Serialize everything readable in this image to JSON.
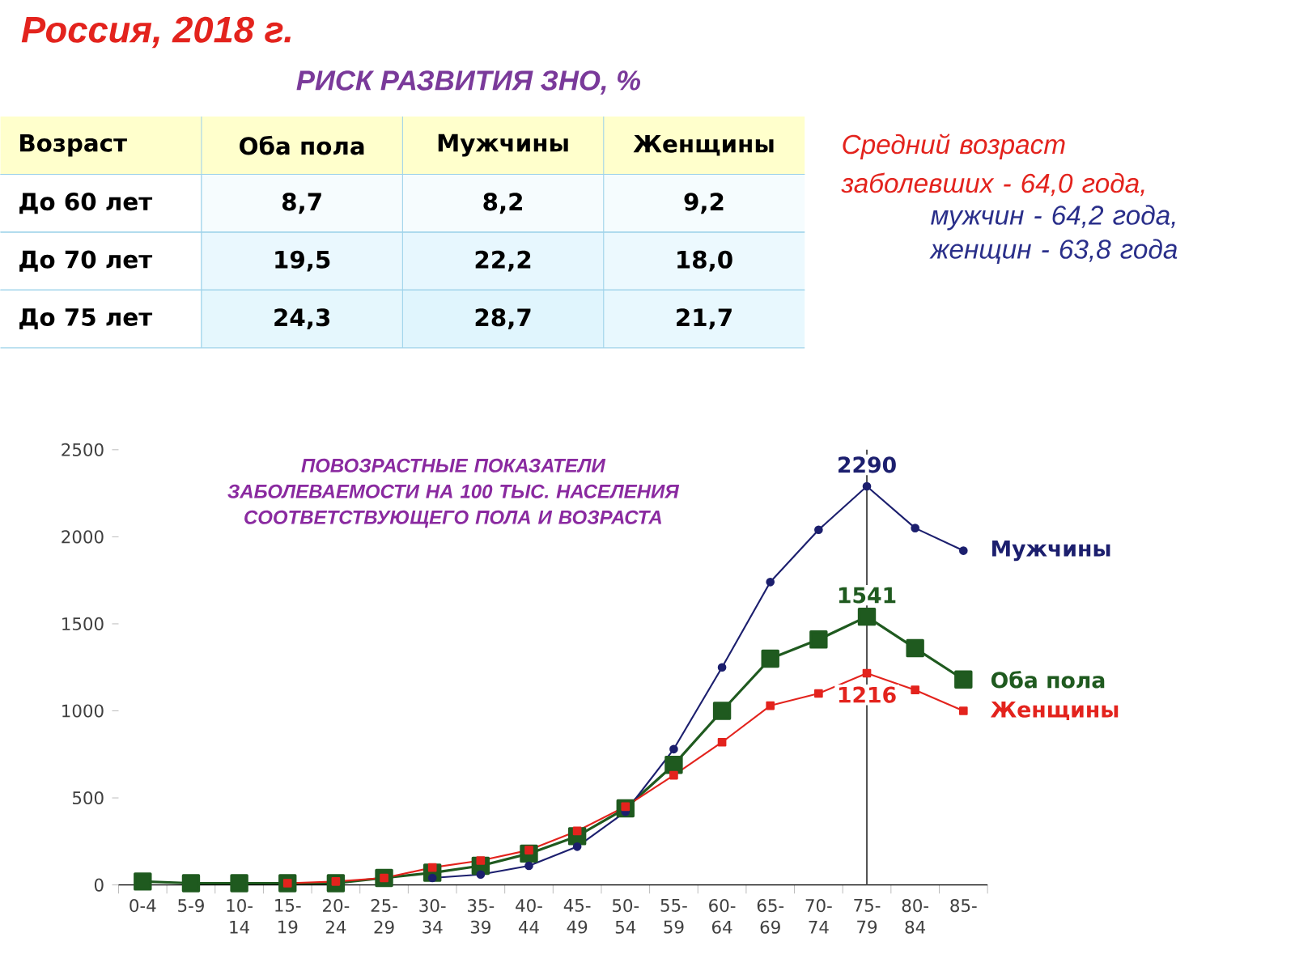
{
  "chart_data": [
    {
      "type": "heatmap",
      "title": "Россия, 2018 г.",
      "subtitle": "РИСК РАЗВИТИЯ ЗНО, %",
      "ylabel": "Возраст",
      "categories": [
        "Оба пола",
        "Мужчины",
        "Женщины"
      ],
      "y_categories": [
        "До 60 лет",
        "До 70 лет",
        "До 75 лет"
      ],
      "cells": [
        [
          8.7,
          8.2,
          9.2
        ],
        [
          19.5,
          22.2,
          18.0
        ],
        [
          24.3,
          28.7,
          21.7
        ]
      ],
      "cell_labels": [
        [
          "8,7",
          "8,2",
          "9,2"
        ],
        [
          "19,5",
          "22,2",
          "18,0"
        ],
        [
          "24,3",
          "28,7",
          "21,7"
        ]
      ],
      "annotations": [
        "Средний возраст заболевших - 64,0 года,",
        "мужчин - 64,2 года,",
        "женщин - 63,8 года"
      ]
    },
    {
      "type": "line",
      "title": "ПОВОЗРАСТНЫЕ ПОКАЗАТЕЛИ ЗАБОЛЕВАЕМОСТИ НА 100 ТЫС. НАСЕЛЕНИЯ СООТВЕТСТВУЮЩЕГО ПОЛА И ВОЗРАСТА",
      "categories": [
        "0-4",
        "5-9",
        "10-14",
        "15-19",
        "20-24",
        "25-29",
        "30-34",
        "35-39",
        "40-44",
        "45-49",
        "50-54",
        "55-59",
        "60-64",
        "65-69",
        "70-74",
        "75-79",
        "80-84",
        "85-"
      ],
      "series": [
        {
          "name": "Мужчины",
          "color": "#1c1f6e",
          "marker": "circle",
          "values": [
            null,
            null,
            null,
            null,
            null,
            null,
            40,
            60,
            110,
            220,
            420,
            780,
            1250,
            1740,
            2040,
            2290,
            2050,
            1920
          ],
          "value_labels": [
            null,
            null,
            null,
            null,
            null,
            null,
            null,
            null,
            null,
            null,
            null,
            null,
            null,
            null,
            null,
            "2290",
            null,
            null
          ]
        },
        {
          "name": "Оба пола",
          "color": "#1f5a1f",
          "marker": "square",
          "values": [
            20,
            10,
            10,
            10,
            10,
            40,
            70,
            110,
            180,
            280,
            440,
            690,
            1000,
            1300,
            1410,
            1541,
            1360,
            1180
          ],
          "value_labels": [
            null,
            null,
            null,
            null,
            null,
            null,
            null,
            null,
            null,
            null,
            null,
            null,
            null,
            null,
            null,
            "1541",
            null,
            null
          ]
        },
        {
          "name": "Женщины",
          "color": "#e3231d",
          "marker": "square",
          "values": [
            null,
            null,
            null,
            10,
            20,
            40,
            100,
            140,
            200,
            310,
            450,
            630,
            820,
            1030,
            1100,
            1216,
            1120,
            1000
          ],
          "value_labels": [
            null,
            null,
            null,
            null,
            null,
            null,
            null,
            null,
            null,
            null,
            null,
            null,
            null,
            null,
            null,
            "1216",
            null,
            null
          ]
        }
      ],
      "ylim": [
        0,
        2500
      ],
      "yticks": [
        0,
        500,
        1000,
        1500,
        2000,
        2500
      ],
      "ref_lines": [
        {
          "axis": "x",
          "value": "75-79",
          "color": "#555555"
        }
      ],
      "grid": false
    }
  ]
}
